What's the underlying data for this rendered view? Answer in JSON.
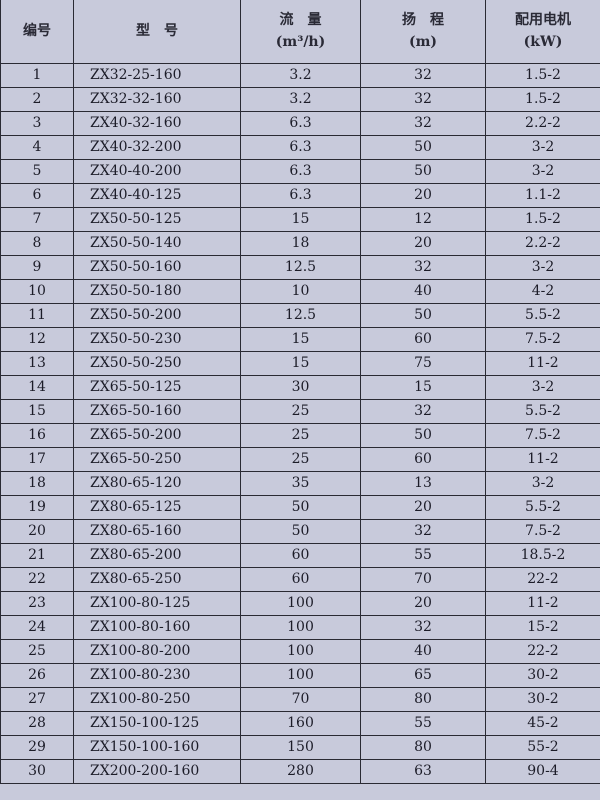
{
  "headers": {
    "no": "编号",
    "model": "型　号",
    "flow": "流　量",
    "flow_unit": "(m³/h)",
    "head": "扬　程",
    "head_unit": "(m)",
    "motor": "配用电机",
    "motor_unit": "(kW)"
  },
  "rows": [
    [
      "1",
      "ZX32-25-160",
      "3.2",
      "32",
      "1.5-2"
    ],
    [
      "2",
      "ZX32-32-160",
      "3.2",
      "32",
      "1.5-2"
    ],
    [
      "3",
      "ZX40-32-160",
      "6.3",
      "32",
      "2.2-2"
    ],
    [
      "4",
      "ZX40-32-200",
      "6.3",
      "50",
      "3-2"
    ],
    [
      "5",
      "ZX40-40-200",
      "6.3",
      "50",
      "3-2"
    ],
    [
      "6",
      "ZX40-40-125",
      "6.3",
      "20",
      "1.1-2"
    ],
    [
      "7",
      "ZX50-50-125",
      "15",
      "12",
      "1.5-2"
    ],
    [
      "8",
      "ZX50-50-140",
      "18",
      "20",
      "2.2-2"
    ],
    [
      "9",
      "ZX50-50-160",
      "12.5",
      "32",
      "3-2"
    ],
    [
      "10",
      "ZX50-50-180",
      "10",
      "40",
      "4-2"
    ],
    [
      "11",
      "ZX50-50-200",
      "12.5",
      "50",
      "5.5-2"
    ],
    [
      "12",
      "ZX50-50-230",
      "15",
      "60",
      "7.5-2"
    ],
    [
      "13",
      "ZX50-50-250",
      "15",
      "75",
      "11-2"
    ],
    [
      "14",
      "ZX65-50-125",
      "30",
      "15",
      "3-2"
    ],
    [
      "15",
      "ZX65-50-160",
      "25",
      "32",
      "5.5-2"
    ],
    [
      "16",
      "ZX65-50-200",
      "25",
      "50",
      "7.5-2"
    ],
    [
      "17",
      "ZX65-50-250",
      "25",
      "60",
      "11-2"
    ],
    [
      "18",
      "ZX80-65-120",
      "35",
      "13",
      "3-2"
    ],
    [
      "19",
      "ZX80-65-125",
      "50",
      "20",
      "5.5-2"
    ],
    [
      "20",
      "ZX80-65-160",
      "50",
      "32",
      "7.5-2"
    ],
    [
      "21",
      "ZX80-65-200",
      "60",
      "55",
      "18.5-2"
    ],
    [
      "22",
      "ZX80-65-250",
      "60",
      "70",
      "22-2"
    ],
    [
      "23",
      "ZX100-80-125",
      "100",
      "20",
      "11-2"
    ],
    [
      "24",
      "ZX100-80-160",
      "100",
      "32",
      "15-2"
    ],
    [
      "25",
      "ZX100-80-200",
      "100",
      "40",
      "22-2"
    ],
    [
      "26",
      "ZX100-80-230",
      "100",
      "65",
      "30-2"
    ],
    [
      "27",
      "ZX100-80-250",
      "70",
      "80",
      "30-2"
    ],
    [
      "28",
      "ZX150-100-125",
      "160",
      "55",
      "45-2"
    ],
    [
      "29",
      "ZX150-100-160",
      "150",
      "80",
      "55-2"
    ],
    [
      "30",
      "ZX200-200-160",
      "280",
      "63",
      "90-4"
    ]
  ]
}
